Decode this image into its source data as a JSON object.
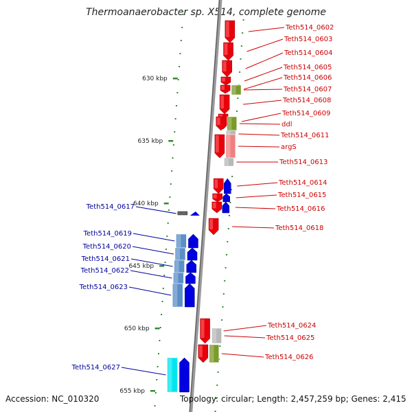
{
  "title": "Thermoanaerobacter sp. X514, complete genome",
  "footer": {
    "accession": "Accession: NC_010320",
    "topology": "Topology: circular; Length: 2,457,259 bp; Genes: 2,415"
  },
  "colors": {
    "forward_strand": "#e8000b",
    "reverse_strand": "#0000e0",
    "forward_label": "#cc0000",
    "reverse_label": "#00009c",
    "cog_green": "#7a9a2a",
    "cog_gray": "#b8b8b8",
    "cog_pink": "#f08080",
    "cog_steelblue": "#5b8fc8",
    "cog_cyan": "#00e5ee",
    "axis": "#9a9a9a",
    "tick": "#2e8b2e"
  },
  "scale_ticks": [
    {
      "label": "630 kbp",
      "kbp": 630
    },
    {
      "label": "635 kbp",
      "kbp": 635
    },
    {
      "label": "640 kbp",
      "kbp": 640
    },
    {
      "label": "645 kbp",
      "kbp": 645
    },
    {
      "label": "650 kbp",
      "kbp": 650
    },
    {
      "label": "655 kbp",
      "kbp": 655
    }
  ],
  "genes": [
    {
      "name": "Teth514_0602",
      "strand": "+",
      "cog": "none"
    },
    {
      "name": "Teth514_0603",
      "strand": "+",
      "cog": "none"
    },
    {
      "name": "Teth514_0604",
      "strand": "+",
      "cog": "none"
    },
    {
      "name": "Teth514_0605",
      "strand": "+",
      "cog": "none"
    },
    {
      "name": "Teth514_0606",
      "strand": "+",
      "cog": "none"
    },
    {
      "name": "Teth514_0607",
      "strand": "+",
      "cog": "green"
    },
    {
      "name": "Teth514_0608",
      "strand": "+",
      "cog": "none"
    },
    {
      "name": "Teth514_0609",
      "strand": "+",
      "cog": "none"
    },
    {
      "name": "ddl",
      "strand": "+",
      "cog": "green"
    },
    {
      "name": "Teth514_0611",
      "strand": "+",
      "cog": "gray"
    },
    {
      "name": "argS",
      "strand": "+",
      "cog": "pink"
    },
    {
      "name": "Teth514_0613",
      "strand": "+",
      "cog": "gray"
    },
    {
      "name": "Teth514_0614",
      "strand": "+",
      "cog": "blue"
    },
    {
      "name": "Teth514_0615",
      "strand": "+",
      "cog": "blue"
    },
    {
      "name": "Teth514_0616",
      "strand": "+",
      "cog": "blue"
    },
    {
      "name": "Teth514_0617",
      "strand": "-",
      "cog": "gray"
    },
    {
      "name": "Teth514_0618",
      "strand": "+",
      "cog": "none"
    },
    {
      "name": "Teth514_0619",
      "strand": "-",
      "cog": "steelblue"
    },
    {
      "name": "Teth514_0620",
      "strand": "-",
      "cog": "steelblue"
    },
    {
      "name": "Teth514_0621",
      "strand": "-",
      "cog": "steelblue"
    },
    {
      "name": "Teth514_0622",
      "strand": "-",
      "cog": "steelblue"
    },
    {
      "name": "Teth514_0623",
      "strand": "-",
      "cog": "steelblue"
    },
    {
      "name": "Teth514_0624",
      "strand": "+",
      "cog": "none"
    },
    {
      "name": "Teth514_0625",
      "strand": "+",
      "cog": "gray"
    },
    {
      "name": "Teth514_0626",
      "strand": "+",
      "cog": "green"
    },
    {
      "name": "Teth514_0627",
      "strand": "-",
      "cog": "cyan"
    }
  ]
}
